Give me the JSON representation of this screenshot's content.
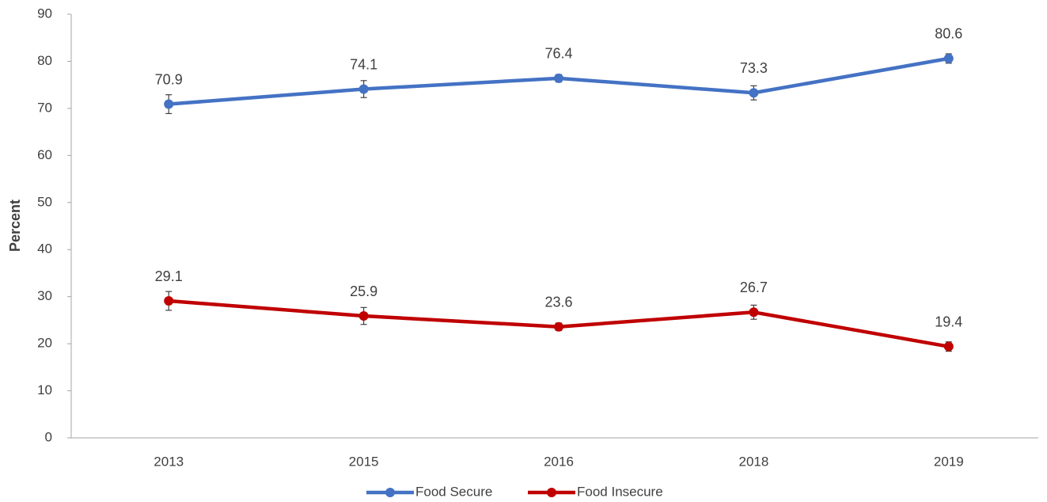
{
  "chart_data": {
    "type": "line",
    "categories": [
      "2013",
      "2015",
      "2016",
      "2018",
      "2019"
    ],
    "series": [
      {
        "name": "Food Secure",
        "color": "#4472c4",
        "values": [
          70.9,
          74.1,
          76.4,
          73.3,
          80.6
        ],
        "errors": [
          2.0,
          1.8,
          0.8,
          1.5,
          1.0
        ]
      },
      {
        "name": "Food Insecure",
        "color": "#c00000",
        "values": [
          29.1,
          25.9,
          23.6,
          26.7,
          19.4
        ],
        "errors": [
          2.0,
          1.8,
          0.8,
          1.5,
          1.0
        ]
      }
    ],
    "y_label": "Percent",
    "ylim": [
      0,
      90
    ],
    "yticks": [
      0,
      10,
      20,
      30,
      40,
      50,
      60,
      70,
      80,
      90
    ],
    "grid": false,
    "legend": "bottom"
  }
}
